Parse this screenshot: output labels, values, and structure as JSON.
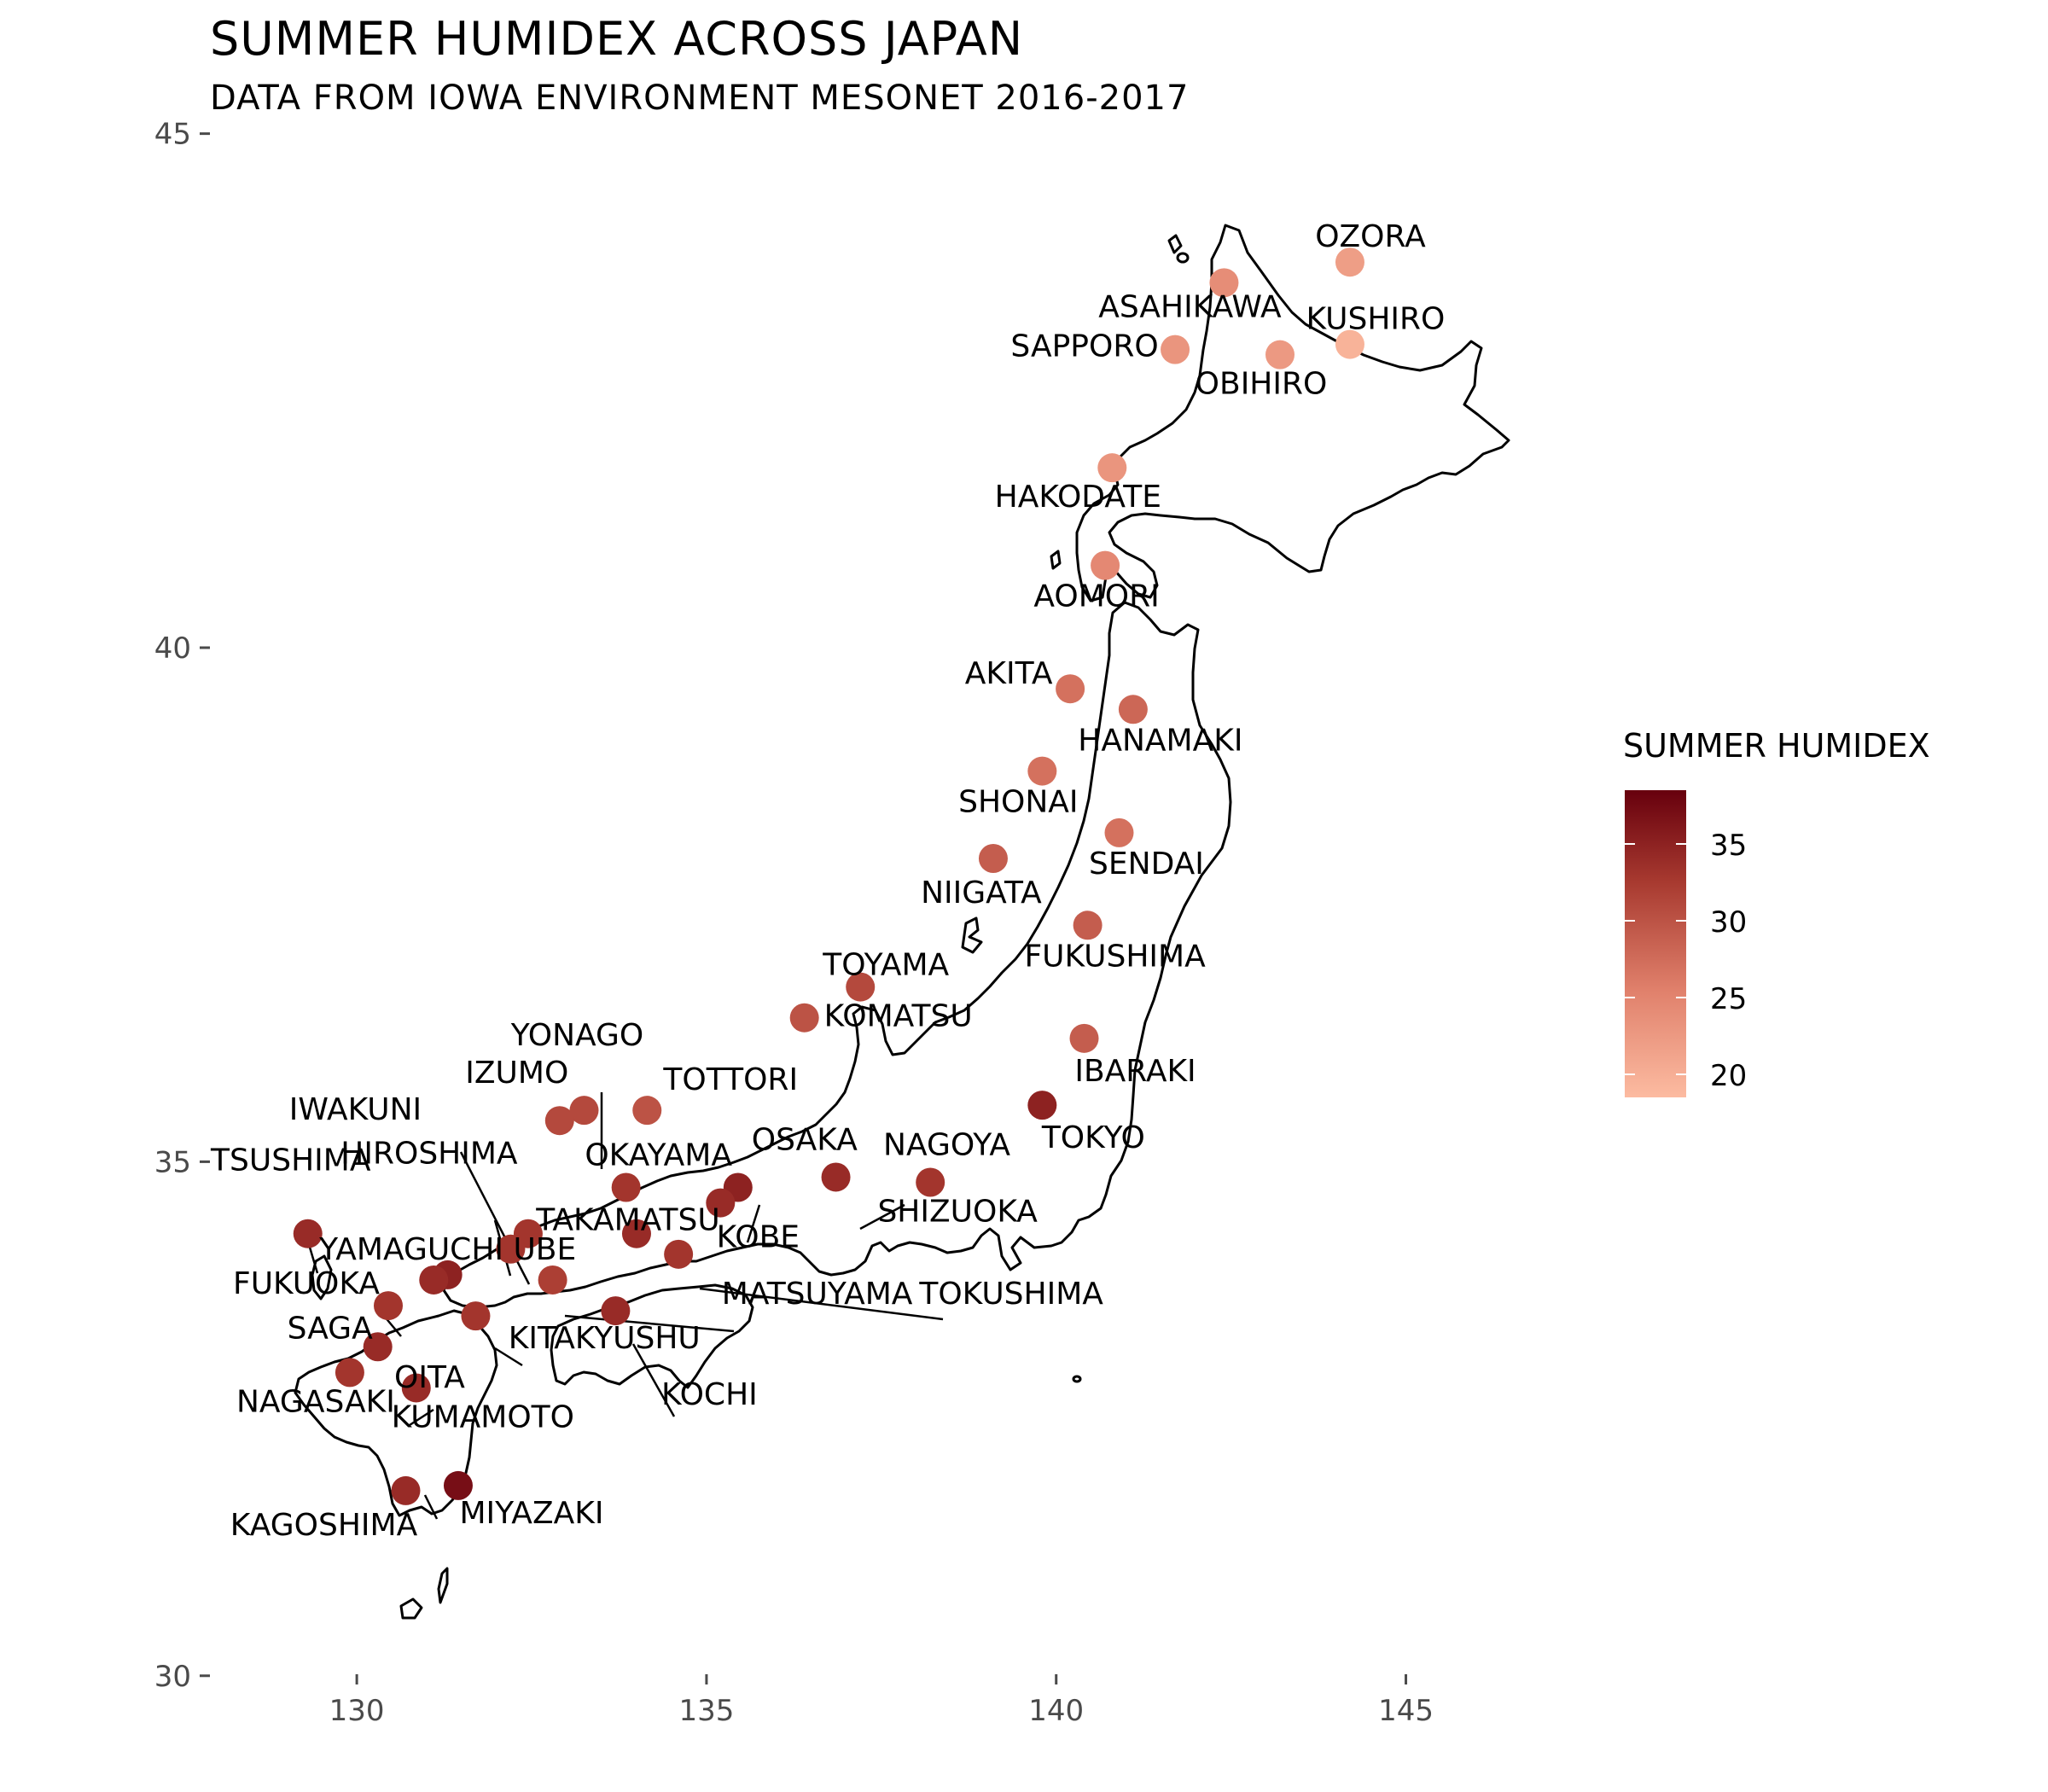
{
  "title": "SUMMER HUMIDEX ACROSS JAPAN",
  "subtitle": "DATA FROM IOWA ENVIRONMENT MESONET 2016-2017",
  "legend": {
    "title": "SUMMER HUMIDEX",
    "ticks": [
      35,
      30,
      25,
      20
    ],
    "range": [
      18.5,
      38.5
    ],
    "color_low": "#fcbba1",
    "color_high": "#67000d"
  },
  "chart_data": {
    "type": "scatter",
    "x_axis": {
      "ticks": [
        130,
        135,
        140,
        145
      ],
      "range": [
        127.9,
        148.3
      ]
    },
    "y_axis": {
      "ticks": [
        30,
        35,
        40,
        45
      ],
      "range": [
        29.55,
        46.3
      ]
    },
    "points": [
      {
        "name": "OZORA",
        "lon": 144.2,
        "lat": 43.75,
        "humidex": 22
      },
      {
        "name": "ASAHIKAWA",
        "lon": 142.4,
        "lat": 43.55,
        "humidex": 24
      },
      {
        "name": "KUSHIRO",
        "lon": 144.2,
        "lat": 42.95,
        "humidex": 19.5
      },
      {
        "name": "SAPPORO",
        "lon": 141.7,
        "lat": 42.9,
        "humidex": 23
      },
      {
        "name": "OBIHIRO",
        "lon": 143.2,
        "lat": 42.85,
        "humidex": 22.5
      },
      {
        "name": "HAKODATE",
        "lon": 140.8,
        "lat": 41.75,
        "humidex": 23
      },
      {
        "name": "AOMORI",
        "lon": 140.7,
        "lat": 40.8,
        "humidex": 24.5
      },
      {
        "name": "AKITA",
        "lon": 140.2,
        "lat": 39.6,
        "humidex": 27
      },
      {
        "name": "HANAMAKI",
        "lon": 141.1,
        "lat": 39.4,
        "humidex": 28
      },
      {
        "name": "SHONAI",
        "lon": 139.8,
        "lat": 38.8,
        "humidex": 27
      },
      {
        "name": "SENDAI",
        "lon": 140.9,
        "lat": 38.2,
        "humidex": 27
      },
      {
        "name": "NIIGATA",
        "lon": 139.1,
        "lat": 37.95,
        "humidex": 29
      },
      {
        "name": "FUKUSHIMA",
        "lon": 140.45,
        "lat": 37.3,
        "humidex": 29
      },
      {
        "name": "TOYAMA",
        "lon": 137.2,
        "lat": 36.7,
        "humidex": 31
      },
      {
        "name": "KOMATSU",
        "lon": 136.4,
        "lat": 36.4,
        "humidex": 30
      },
      {
        "name": "IBARAKI",
        "lon": 140.4,
        "lat": 36.2,
        "humidex": 29
      },
      {
        "name": "TOKYO",
        "lon": 139.8,
        "lat": 35.55,
        "humidex": 35
      },
      {
        "name": "YONAGO",
        "lon": 133.25,
        "lat": 35.5,
        "humidex": 31
      },
      {
        "name": "IZUMO",
        "lon": 132.9,
        "lat": 35.4,
        "humidex": 31
      },
      {
        "name": "TOTTORI",
        "lon": 134.15,
        "lat": 35.5,
        "humidex": 30
      },
      {
        "name": "OSAKA",
        "lon": 135.45,
        "lat": 34.75,
        "humidex": 35
      },
      {
        "name": "KOBE",
        "lon": 135.2,
        "lat": 34.6,
        "humidex": 34
      },
      {
        "name": "NAGOYA",
        "lon": 136.85,
        "lat": 34.85,
        "humidex": 34
      },
      {
        "name": "SHIZUOKA",
        "lon": 138.2,
        "lat": 34.8,
        "humidex": 33
      },
      {
        "name": "OKAYAMA",
        "lon": 133.85,
        "lat": 34.75,
        "humidex": 33
      },
      {
        "name": "TAKAMATSU",
        "lon": 134.0,
        "lat": 34.3,
        "humidex": 34
      },
      {
        "name": "TOKUSHIMA",
        "lon": 134.6,
        "lat": 34.1,
        "humidex": 33
      },
      {
        "name": "HIROSHIMA",
        "lon": 132.45,
        "lat": 34.3,
        "humidex": 33
      },
      {
        "name": "IWAKUNI",
        "lon": 132.2,
        "lat": 34.15,
        "humidex": 33
      },
      {
        "name": "MATSUYAMA",
        "lon": 132.8,
        "lat": 33.85,
        "humidex": 32
      },
      {
        "name": "KOCHI",
        "lon": 133.7,
        "lat": 33.55,
        "humidex": 34
      },
      {
        "name": "TSUSHIMA",
        "lon": 129.3,
        "lat": 34.3,
        "humidex": 34
      },
      {
        "name": "YAMAGUCHI UBE",
        "lon": 131.3,
        "lat": 33.9,
        "humidex": 35
      },
      {
        "name": "KITAKYUSHU",
        "lon": 131.1,
        "lat": 33.85,
        "humidex": 34
      },
      {
        "name": "FUKUOKA",
        "lon": 130.45,
        "lat": 33.6,
        "humidex": 33
      },
      {
        "name": "OITA",
        "lon": 131.7,
        "lat": 33.5,
        "humidex": 33
      },
      {
        "name": "SAGA",
        "lon": 130.3,
        "lat": 33.2,
        "humidex": 34
      },
      {
        "name": "NAGASAKI",
        "lon": 129.9,
        "lat": 32.95,
        "humidex": 33
      },
      {
        "name": "KUMAMOTO",
        "lon": 130.85,
        "lat": 32.8,
        "humidex": 34
      },
      {
        "name": "KAGOSHIMA",
        "lon": 130.7,
        "lat": 31.8,
        "humidex": 34
      },
      {
        "name": "MIYAZAKI",
        "lon": 131.45,
        "lat": 31.85,
        "humidex": 37
      }
    ]
  }
}
